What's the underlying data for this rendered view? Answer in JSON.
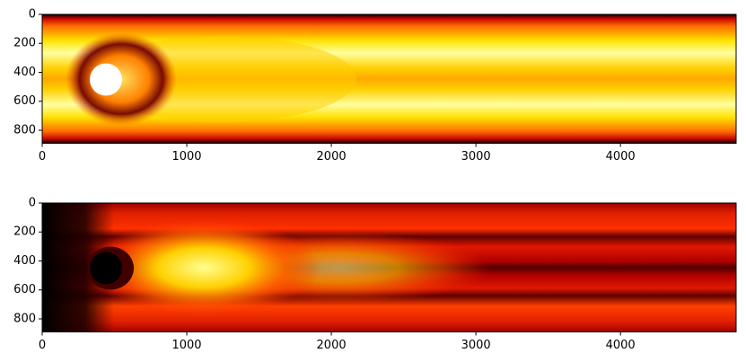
{
  "chart_data": [
    {
      "type": "image",
      "xlim": [
        0,
        4800
      ],
      "ylim": [
        890,
        0
      ],
      "xticks": [
        0,
        1000,
        2000,
        3000,
        4000
      ],
      "yticks": [
        0,
        200,
        400,
        600,
        800
      ]
    },
    {
      "type": "image",
      "xlim": [
        0,
        4800
      ],
      "ylim": [
        890,
        0
      ],
      "xticks": [
        0,
        1000,
        2000,
        3000,
        4000
      ],
      "yticks": [
        0,
        200,
        400,
        600,
        800
      ]
    }
  ]
}
